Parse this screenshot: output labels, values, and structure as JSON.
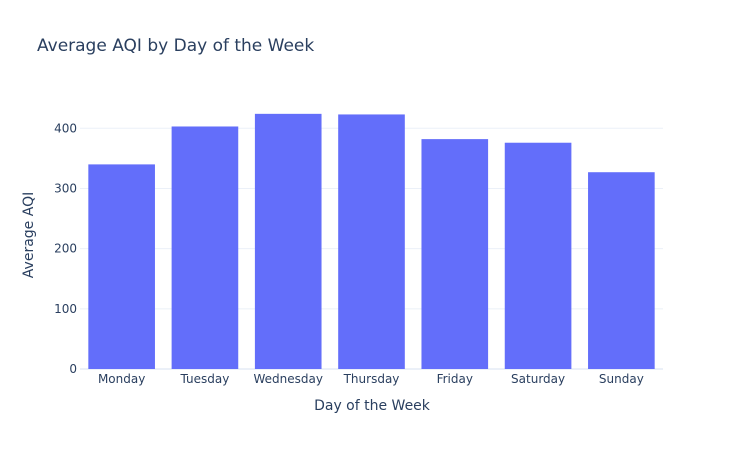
{
  "chart_data": {
    "type": "bar",
    "title": "Average AQI by Day of the Week",
    "xlabel": "Day of the Week",
    "ylabel": "Average AQI",
    "categories": [
      "Monday",
      "Tuesday",
      "Wednesday",
      "Thursday",
      "Friday",
      "Saturday",
      "Sunday"
    ],
    "values": [
      340,
      403,
      424,
      423,
      382,
      376,
      327
    ],
    "ylim": [
      0,
      447
    ],
    "yticks": [
      0,
      100,
      200,
      300,
      400
    ],
    "grid": true,
    "bar_color": "#636efa",
    "grid_color": "#ebf0f8",
    "text_color": "#2a3f5f"
  }
}
